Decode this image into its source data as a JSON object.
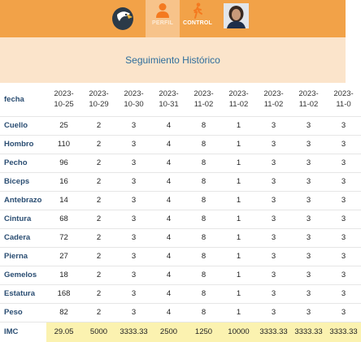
{
  "nav": {
    "logo_icon": "eagle-logo-icon",
    "tabs": [
      {
        "label": "PERFIL",
        "icon": "person-icon",
        "active": true
      },
      {
        "label": "CONTROL",
        "icon": "walking-icon",
        "active": false
      }
    ],
    "avatar_icon": "user-avatar"
  },
  "page": {
    "title": "Seguimiento Histórico"
  },
  "table": {
    "header_label": "fecha",
    "dates": [
      [
        "2023-",
        "10-25"
      ],
      [
        "2023-",
        "10-29"
      ],
      [
        "2023-",
        "10-30"
      ],
      [
        "2023-",
        "10-31"
      ],
      [
        "2023-",
        "11-02"
      ],
      [
        "2023-",
        "11-02"
      ],
      [
        "2023-",
        "11-02"
      ],
      [
        "2023-",
        "11-02"
      ],
      [
        "2023-",
        "11-0"
      ]
    ],
    "rows": [
      {
        "label": "Cuello",
        "values": [
          "25",
          "2",
          "3",
          "4",
          "8",
          "1",
          "3",
          "3",
          "3"
        ]
      },
      {
        "label": "Hombro",
        "values": [
          "110",
          "2",
          "3",
          "4",
          "8",
          "1",
          "3",
          "3",
          "3"
        ]
      },
      {
        "label": "Pecho",
        "values": [
          "96",
          "2",
          "3",
          "4",
          "8",
          "1",
          "3",
          "3",
          "3"
        ]
      },
      {
        "label": "Biceps",
        "values": [
          "16",
          "2",
          "3",
          "4",
          "8",
          "1",
          "3",
          "3",
          "3"
        ]
      },
      {
        "label": "Antebrazo",
        "values": [
          "14",
          "2",
          "3",
          "4",
          "8",
          "1",
          "3",
          "3",
          "3"
        ]
      },
      {
        "label": "Cintura",
        "values": [
          "68",
          "2",
          "3",
          "4",
          "8",
          "1",
          "3",
          "3",
          "3"
        ]
      },
      {
        "label": "Cadera",
        "values": [
          "72",
          "2",
          "3",
          "4",
          "8",
          "1",
          "3",
          "3",
          "3"
        ]
      },
      {
        "label": "Pierna",
        "values": [
          "27",
          "2",
          "3",
          "4",
          "8",
          "1",
          "3",
          "3",
          "3"
        ]
      },
      {
        "label": "Gemelos",
        "values": [
          "18",
          "2",
          "3",
          "4",
          "8",
          "1",
          "3",
          "3",
          "3"
        ]
      },
      {
        "label": "Estatura",
        "values": [
          "168",
          "2",
          "3",
          "4",
          "8",
          "1",
          "3",
          "3",
          "3"
        ]
      },
      {
        "label": "Peso",
        "values": [
          "82",
          "2",
          "3",
          "4",
          "8",
          "1",
          "3",
          "3",
          "3"
        ]
      }
    ],
    "imc": {
      "label": "IMC",
      "values": [
        "29.05",
        "5000",
        "3333.33",
        "2500",
        "1250",
        "10000",
        "3333.33",
        "3333.33",
        "3333.33"
      ]
    }
  },
  "colors": {
    "topbar": "#f2a248",
    "subheader": "#fbe4cb",
    "title": "#2f6e9c",
    "row_label": "#2a4d72",
    "imc_highlight": "#fbf2b0"
  }
}
